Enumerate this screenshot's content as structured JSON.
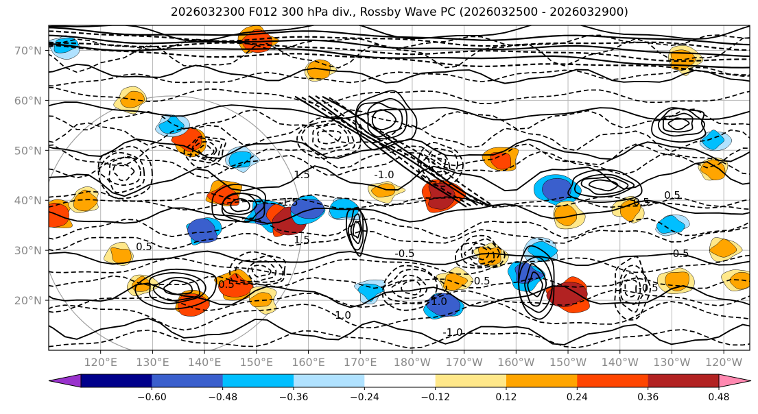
{
  "title": "2026032300 F012 300 hPa div., Rossby Wave PC (2026032500 - 2026032900)",
  "chart_data": {
    "type": "heatmap",
    "title": "2026032300 F012 300 hPa div., Rossby Wave PC (2026032500 - 2026032900)",
    "projection": "map, 110°E–115°W, 10°N–75°N",
    "lat_range": [
      10,
      75
    ],
    "lon_range": [
      110,
      245
    ],
    "grid": true,
    "y_ticks": [
      {
        "lat": 70,
        "label": "70°N"
      },
      {
        "lat": 60,
        "label": "60°N"
      },
      {
        "lat": 50,
        "label": "50°N"
      },
      {
        "lat": 40,
        "label": "40°N"
      },
      {
        "lat": 30,
        "label": "30°N"
      },
      {
        "lat": 20,
        "label": "20°N"
      }
    ],
    "x_ticks": [
      {
        "lon": 120,
        "label": "120°E"
      },
      {
        "lon": 130,
        "label": "130°E"
      },
      {
        "lon": 140,
        "label": "140°E"
      },
      {
        "lon": 150,
        "label": "150°E"
      },
      {
        "lon": 160,
        "label": "160°E"
      },
      {
        "lon": 170,
        "label": "170°E"
      },
      {
        "lon": 180,
        "label": "180°W"
      },
      {
        "lon": 190,
        "label": "170°W"
      },
      {
        "lon": 200,
        "label": "160°W"
      },
      {
        "lon": 210,
        "label": "150°W"
      },
      {
        "lon": 220,
        "label": "140°W"
      },
      {
        "lon": 230,
        "label": "130°W"
      },
      {
        "lon": 240,
        "label": "120°W"
      }
    ],
    "colorbar": {
      "orientation": "horizontal",
      "extend": "both",
      "bounds": [
        -0.6,
        -0.48,
        -0.36,
        -0.24,
        -0.12,
        0.12,
        0.24,
        0.36,
        0.48,
        0.6
      ],
      "tick_labels": [
        "−0.60",
        "−0.48",
        "−0.36",
        "−0.24",
        "−0.12",
        "0.12",
        "0.24",
        "0.36",
        "0.48",
        "0.60"
      ],
      "colors": [
        "#9932cc",
        "#00008b",
        "#3a5fcd",
        "#00bfff",
        "#b0e2ff",
        "#ffffff",
        "#ffe88a",
        "#ffa500",
        "#ff4500",
        "#b22222",
        "#ff88b0"
      ]
    },
    "contour_labels": [
      "0.5",
      "1.0",
      "1.5",
      "-0.5",
      "-1.0",
      "-1.5",
      "0.5",
      "-0.5",
      "1.5",
      "-1.0",
      "0.5",
      "-0.5",
      "1.0",
      "0.5",
      "-0.5"
    ],
    "filled_blobs": [
      {
        "lon": 111,
        "lat": 37,
        "value": 0.45
      },
      {
        "lon": 117,
        "lat": 40,
        "value": 0.3
      },
      {
        "lon": 124,
        "lat": 29,
        "value": 0.28
      },
      {
        "lon": 137,
        "lat": 52,
        "value": 0.42
      },
      {
        "lon": 134,
        "lat": 55,
        "value": -0.3
      },
      {
        "lon": 140,
        "lat": 34,
        "value": -0.4
      },
      {
        "lon": 144,
        "lat": 41,
        "value": 0.45
      },
      {
        "lon": 152,
        "lat": 37,
        "value": -0.45
      },
      {
        "lon": 156,
        "lat": 36,
        "value": 0.5
      },
      {
        "lon": 160,
        "lat": 38,
        "value": -0.4
      },
      {
        "lon": 147,
        "lat": 48,
        "value": -0.3
      },
      {
        "lon": 167,
        "lat": 38,
        "value": -0.35
      },
      {
        "lon": 175,
        "lat": 42,
        "value": 0.3
      },
      {
        "lon": 186,
        "lat": 41,
        "value": 0.5
      },
      {
        "lon": 197,
        "lat": 48,
        "value": 0.4
      },
      {
        "lon": 208,
        "lat": 42,
        "value": -0.45
      },
      {
        "lon": 210,
        "lat": 37,
        "value": 0.3
      },
      {
        "lon": 205,
        "lat": 30,
        "value": -0.35
      },
      {
        "lon": 202,
        "lat": 25,
        "value": -0.4
      },
      {
        "lon": 210,
        "lat": 21,
        "value": 0.55
      },
      {
        "lon": 195,
        "lat": 29,
        "value": 0.35
      },
      {
        "lon": 146,
        "lat": 23,
        "value": 0.42
      },
      {
        "lon": 151,
        "lat": 20,
        "value": 0.3
      },
      {
        "lon": 138,
        "lat": 19,
        "value": 0.4
      },
      {
        "lon": 128,
        "lat": 23,
        "value": 0.28
      },
      {
        "lon": 172,
        "lat": 22,
        "value": -0.3
      },
      {
        "lon": 186,
        "lat": 19,
        "value": -0.4
      },
      {
        "lon": 188,
        "lat": 24,
        "value": 0.3
      },
      {
        "lon": 231,
        "lat": 24,
        "value": 0.35
      },
      {
        "lon": 243,
        "lat": 24,
        "value": 0.3
      },
      {
        "lon": 238,
        "lat": 52,
        "value": -0.3
      },
      {
        "lon": 238,
        "lat": 46,
        "value": 0.3
      },
      {
        "lon": 232,
        "lat": 68,
        "value": 0.35
      },
      {
        "lon": 150,
        "lat": 72,
        "value": 0.4
      },
      {
        "lon": 126,
        "lat": 60,
        "value": 0.3
      },
      {
        "lon": 162,
        "lat": 66,
        "value": 0.3
      },
      {
        "lon": 113,
        "lat": 71,
        "value": -0.3
      },
      {
        "lon": 222,
        "lat": 38,
        "value": 0.3
      },
      {
        "lon": 230,
        "lat": 35,
        "value": -0.3
      },
      {
        "lon": 240,
        "lat": 30,
        "value": 0.3
      }
    ]
  }
}
